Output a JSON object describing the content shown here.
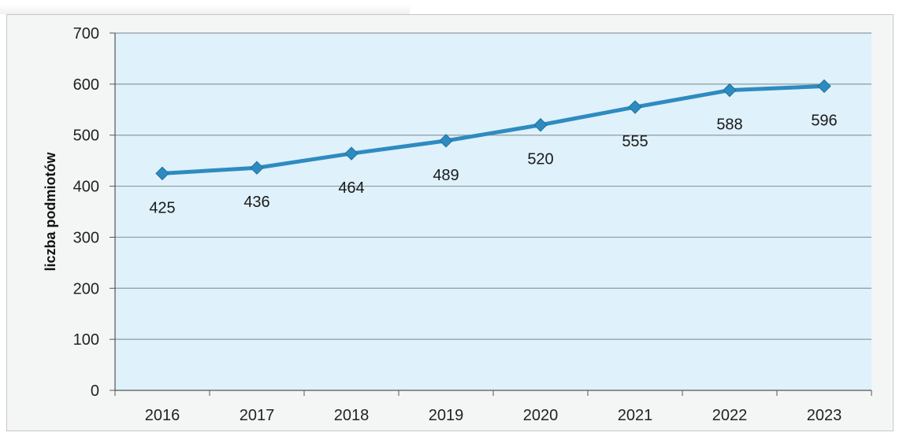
{
  "chart_data": {
    "type": "line",
    "title": "",
    "xlabel": "",
    "ylabel": "liczba podmiotów",
    "categories": [
      "2016",
      "2017",
      "2018",
      "2019",
      "2020",
      "2021",
      "2022",
      "2023"
    ],
    "values": [
      425,
      436,
      464,
      489,
      520,
      555,
      588,
      596
    ],
    "data_labels": [
      "425",
      "436",
      "464",
      "489",
      "520",
      "555",
      "588",
      "596"
    ],
    "ylim": [
      0,
      700
    ],
    "yticks": [
      "0",
      "100",
      "200",
      "300",
      "400",
      "500",
      "600",
      "700"
    ],
    "grid": true,
    "legend": "none",
    "colors": {
      "line": "#2e8bc0",
      "marker": "#2e8bc0",
      "plot_background": "#dff1fb",
      "gridline": "#8f9aa0"
    }
  }
}
